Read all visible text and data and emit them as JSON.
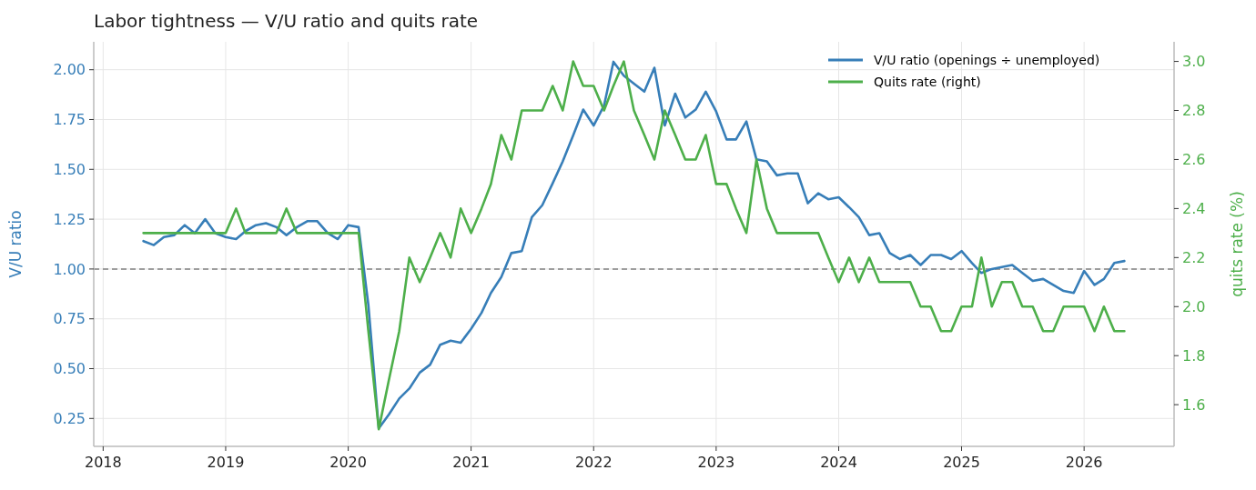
{
  "chart_data": {
    "type": "line",
    "title": "Labor tightness — V/U ratio and quits rate",
    "ylabel": "V/U ratio",
    "y2label": "quits rate (%)",
    "x": [
      "2018-05",
      "2018-06",
      "2018-07",
      "2018-08",
      "2018-09",
      "2018-10",
      "2018-11",
      "2018-12",
      "2019-01",
      "2019-02",
      "2019-03",
      "2019-04",
      "2019-05",
      "2019-06",
      "2019-07",
      "2019-08",
      "2019-09",
      "2019-10",
      "2019-11",
      "2019-12",
      "2020-01",
      "2020-02",
      "2020-03",
      "2020-04",
      "2020-05",
      "2020-06",
      "2020-07",
      "2020-08",
      "2020-09",
      "2020-10",
      "2020-11",
      "2020-12",
      "2021-01",
      "2021-02",
      "2021-03",
      "2021-04",
      "2021-05",
      "2021-06",
      "2021-07",
      "2021-08",
      "2021-09",
      "2021-10",
      "2021-11",
      "2021-12",
      "2022-01",
      "2022-02",
      "2022-03",
      "2022-04",
      "2022-05",
      "2022-06",
      "2022-07",
      "2022-08",
      "2022-09",
      "2022-10",
      "2022-11",
      "2022-12",
      "2023-01",
      "2023-02",
      "2023-03",
      "2023-04",
      "2023-05",
      "2023-06",
      "2023-07",
      "2023-08",
      "2023-09",
      "2023-10",
      "2023-11",
      "2023-12",
      "2024-01",
      "2024-02",
      "2024-03",
      "2024-04",
      "2024-05",
      "2024-06",
      "2024-07",
      "2024-08",
      "2024-09",
      "2024-10",
      "2024-11",
      "2024-12",
      "2025-01",
      "2025-02",
      "2025-03",
      "2025-04",
      "2025-05",
      "2025-06",
      "2025-07",
      "2025-08",
      "2025-09",
      "2025-10",
      "2025-11",
      "2025-12",
      "2026-01",
      "2026-02",
      "2026-03",
      "2026-04",
      "2026-05"
    ],
    "series": [
      {
        "name": "V/U ratio (openings ÷ unemployed)",
        "color": "#377eb8",
        "values": [
          1.14,
          1.12,
          1.16,
          1.17,
          1.22,
          1.18,
          1.25,
          1.18,
          1.16,
          1.15,
          1.19,
          1.22,
          1.23,
          1.21,
          1.17,
          1.21,
          1.24,
          1.24,
          1.18,
          1.15,
          1.22,
          1.21,
          0.82,
          0.2,
          0.27,
          0.35,
          0.4,
          0.48,
          0.52,
          0.62,
          0.64,
          0.63,
          0.7,
          0.78,
          0.88,
          0.96,
          1.08,
          1.09,
          1.26,
          1.32,
          1.43,
          1.54,
          1.67,
          1.8,
          1.72,
          1.82,
          2.04,
          1.97,
          1.93,
          1.89,
          2.01,
          1.72,
          1.88,
          1.76,
          1.8,
          1.89,
          1.79,
          1.65,
          1.65,
          1.74,
          1.55,
          1.54,
          1.47,
          1.48,
          1.48,
          1.33,
          1.38,
          1.35,
          1.36,
          1.31,
          1.26,
          1.17,
          1.18,
          1.08,
          1.05,
          1.07,
          1.02,
          1.07,
          1.07,
          1.05,
          1.09,
          1.03,
          0.98,
          1.0,
          1.01,
          1.02,
          0.98,
          0.94,
          0.95,
          0.92,
          0.89,
          0.88,
          0.99,
          0.92,
          0.95,
          1.03,
          1.04
        ]
      },
      {
        "name": "Quits rate (right)",
        "color": "#4daf4a",
        "axis": "y2",
        "values": [
          2.3,
          2.3,
          2.3,
          2.3,
          2.3,
          2.3,
          2.3,
          2.3,
          2.3,
          2.4,
          2.3,
          2.3,
          2.3,
          2.3,
          2.4,
          2.3,
          2.3,
          2.3,
          2.3,
          2.3,
          2.3,
          2.3,
          1.9,
          1.5,
          1.7,
          1.9,
          2.2,
          2.1,
          2.2,
          2.3,
          2.2,
          2.4,
          2.3,
          2.4,
          2.5,
          2.7,
          2.6,
          2.8,
          2.8,
          2.8,
          2.9,
          2.8,
          3.0,
          2.9,
          2.9,
          2.8,
          2.9,
          3.0,
          2.8,
          2.7,
          2.6,
          2.8,
          2.7,
          2.6,
          2.6,
          2.7,
          2.5,
          2.5,
          2.4,
          2.3,
          2.6,
          2.4,
          2.3,
          2.3,
          2.3,
          2.3,
          2.3,
          2.2,
          2.1,
          2.2,
          2.1,
          2.2,
          2.1,
          2.1,
          2.1,
          2.1,
          2.0,
          2.0,
          1.9,
          1.9,
          2.0,
          2.0,
          2.2,
          2.0,
          2.1,
          2.1,
          2.0,
          2.0,
          1.9,
          1.9,
          2.0,
          2.0,
          2.0,
          1.9,
          2.0,
          1.9,
          1.9
        ]
      }
    ],
    "xlim": [
      "2017-12-04",
      "2026-09-26"
    ],
    "xticks": [
      {
        "value": "2018",
        "label": "2018"
      },
      {
        "value": "2019",
        "label": "2019"
      },
      {
        "value": "2020",
        "label": "2020"
      },
      {
        "value": "2021",
        "label": "2021"
      },
      {
        "value": "2022",
        "label": "2022"
      },
      {
        "value": "2023",
        "label": "2023"
      },
      {
        "value": "2024",
        "label": "2024"
      },
      {
        "value": "2025",
        "label": "2025"
      },
      {
        "value": "2026",
        "label": "2026"
      }
    ],
    "ylim": [
      0.11,
      2.14
    ],
    "yticks": [
      {
        "value": 0.25,
        "label": "0.25"
      },
      {
        "value": 0.5,
        "label": "0.50"
      },
      {
        "value": 0.75,
        "label": "0.75"
      },
      {
        "value": 1,
        "label": "1.00"
      },
      {
        "value": 1.25,
        "label": "1.25"
      },
      {
        "value": 1.5,
        "label": "1.50"
      },
      {
        "value": 1.75,
        "label": "1.75"
      },
      {
        "value": 2,
        "label": "2.00"
      }
    ],
    "y2lim": [
      1.43,
      3.08
    ],
    "y2ticks": [
      1.6,
      1.8,
      {
        "value": 2,
        "label": "2.0"
      },
      2.2,
      2.4,
      2.6,
      2.8,
      {
        "value": 3,
        "label": "3.0"
      }
    ],
    "ref_lines": [
      {
        "axis": "y",
        "value": 1,
        "color": "#808080",
        "line_style": "dashed"
      }
    ],
    "grid": true,
    "legend": "top right",
    "line_style": "solid"
  }
}
